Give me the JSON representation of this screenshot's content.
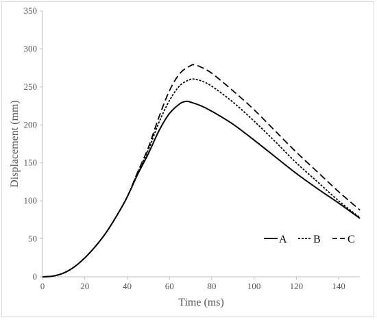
{
  "chart_data": {
    "type": "line",
    "title": "",
    "xlabel": "Time (ms)",
    "ylabel": "Displacement (mm)",
    "xlim": [
      0,
      150
    ],
    "ylim": [
      0,
      350
    ],
    "xticks": [
      0,
      20,
      40,
      60,
      80,
      100,
      120,
      140
    ],
    "yticks": [
      0,
      50,
      100,
      150,
      200,
      250,
      300,
      350
    ],
    "grid": false,
    "legend_position": "bottom-right",
    "series": [
      {
        "name": "A",
        "style": "solid",
        "color": "#000000",
        "x": [
          0,
          5,
          10,
          15,
          20,
          25,
          30,
          35,
          40,
          45,
          50,
          55,
          60,
          65,
          68,
          70,
          75,
          80,
          90,
          100,
          110,
          120,
          130,
          140,
          150
        ],
        "y": [
          0,
          1,
          5,
          13,
          25,
          40,
          58,
          80,
          105,
          135,
          162,
          192,
          215,
          228,
          231,
          230,
          225,
          218,
          201,
          180,
          158,
          136,
          116,
          97,
          77
        ]
      },
      {
        "name": "B",
        "style": "dotted",
        "color": "#000000",
        "x": [
          0,
          5,
          10,
          15,
          20,
          25,
          30,
          35,
          40,
          45,
          50,
          55,
          60,
          65,
          70,
          72,
          75,
          80,
          90,
          100,
          110,
          120,
          130,
          140,
          150
        ],
        "y": [
          0,
          1,
          5,
          13,
          25,
          40,
          58,
          80,
          105,
          137,
          167,
          203,
          232,
          252,
          260,
          260,
          258,
          251,
          230,
          205,
          178,
          150,
          125,
          100,
          78
        ]
      },
      {
        "name": "C",
        "style": "dashed",
        "color": "#000000",
        "x": [
          0,
          5,
          10,
          15,
          20,
          25,
          30,
          35,
          40,
          45,
          50,
          55,
          60,
          65,
          70,
          72,
          75,
          80,
          90,
          100,
          110,
          120,
          130,
          140,
          150
        ],
        "y": [
          0,
          1,
          5,
          13,
          25,
          40,
          58,
          80,
          105,
          138,
          170,
          210,
          245,
          268,
          278,
          279,
          276,
          268,
          245,
          220,
          192,
          164,
          138,
          112,
          88
        ]
      }
    ]
  }
}
